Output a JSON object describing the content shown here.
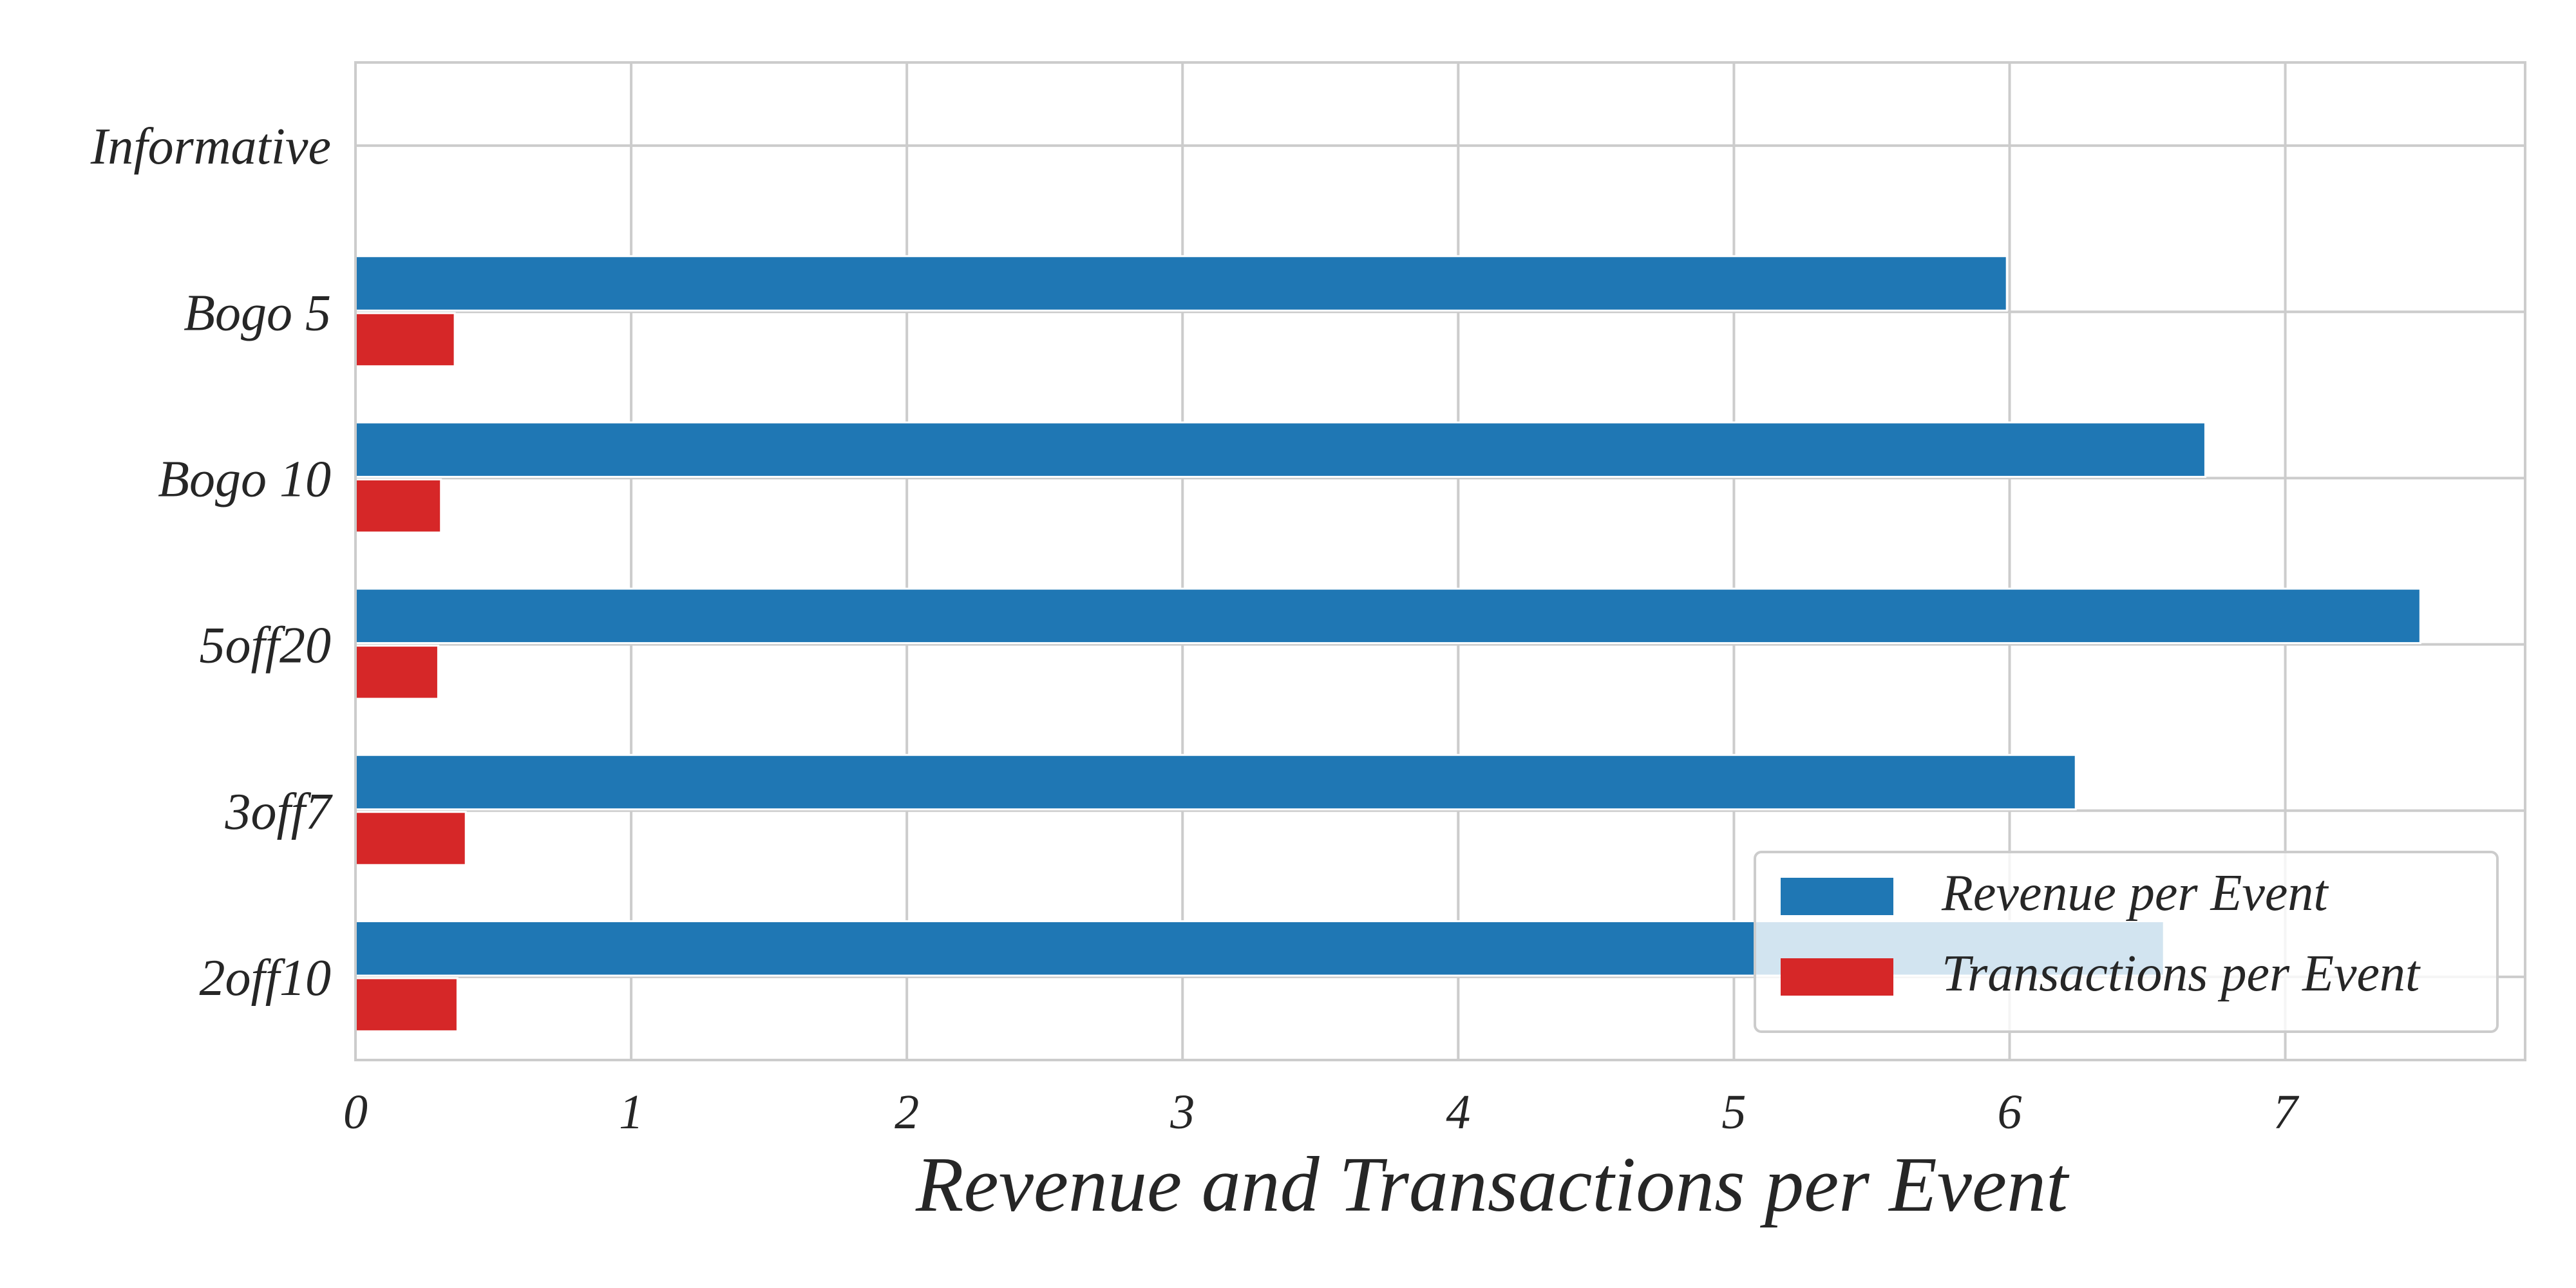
{
  "chart_data": {
    "type": "bar",
    "orientation": "horizontal",
    "categories": [
      "Informative",
      "Bogo 5",
      "Bogo 10",
      "5off20",
      "3off7",
      "2off10"
    ],
    "series": [
      {
        "name": "Revenue per Event",
        "color": "#1f77b4",
        "values": [
          0,
          5.99,
          6.71,
          7.49,
          6.24,
          6.56
        ]
      },
      {
        "name": "Transactions per Event",
        "color": "#d62728",
        "values": [
          0,
          0.36,
          0.31,
          0.3,
          0.4,
          0.37
        ]
      }
    ],
    "title": "",
    "xlabel": "Revenue and Transactions per Event",
    "ylabel": "",
    "xlim": [
      0,
      7.87
    ],
    "xticks": [
      0,
      1,
      2,
      3,
      4,
      5,
      6,
      7
    ],
    "grid": true,
    "legend_position": "lower-right"
  }
}
